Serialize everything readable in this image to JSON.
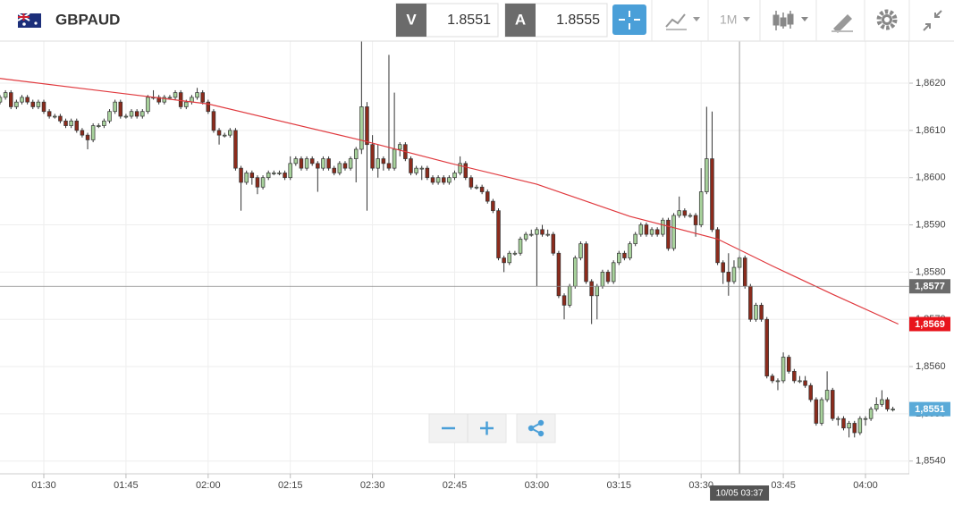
{
  "header": {
    "symbol": "GBPAUD",
    "bid_label": "V",
    "bid": 1.8551,
    "ask_label": "A",
    "ask": 1.8555,
    "timeframe": "1M"
  },
  "chart_data": {
    "type": "candlestick",
    "x": [
      "01:22",
      "01:23",
      "01:24",
      "01:25",
      "01:26",
      "01:27",
      "01:28",
      "01:29",
      "01:30",
      "01:31",
      "01:32",
      "01:33",
      "01:34",
      "01:35",
      "01:36",
      "01:37",
      "01:38",
      "01:39",
      "01:40",
      "01:41",
      "01:42",
      "01:43",
      "01:44",
      "01:45",
      "01:46",
      "01:47",
      "01:48",
      "01:49",
      "01:50",
      "01:51",
      "01:52",
      "01:53",
      "01:54",
      "01:55",
      "01:56",
      "01:57",
      "01:58",
      "01:59",
      "02:00",
      "02:01",
      "02:02",
      "02:03",
      "02:04",
      "02:05",
      "02:06",
      "02:07",
      "02:08",
      "02:09",
      "02:10",
      "02:11",
      "02:12",
      "02:13",
      "02:14",
      "02:15",
      "02:16",
      "02:17",
      "02:18",
      "02:19",
      "02:20",
      "02:21",
      "02:22",
      "02:23",
      "02:24",
      "02:25",
      "02:26",
      "02:27",
      "02:28",
      "02:29",
      "02:30",
      "02:31",
      "02:32",
      "02:33",
      "02:34",
      "02:35",
      "02:36",
      "02:37",
      "02:38",
      "02:39",
      "02:40",
      "02:41",
      "02:42",
      "02:43",
      "02:44",
      "02:45",
      "02:46",
      "02:47",
      "02:48",
      "02:49",
      "02:50",
      "02:51",
      "02:52",
      "02:53",
      "02:54",
      "02:55",
      "02:56",
      "02:57",
      "02:58",
      "02:59",
      "03:00",
      "03:01",
      "03:02",
      "03:03",
      "03:04",
      "03:05",
      "03:06",
      "03:07",
      "03:08",
      "03:09",
      "03:10",
      "03:11",
      "03:12",
      "03:13",
      "03:14",
      "03:15",
      "03:16",
      "03:17",
      "03:18",
      "03:19",
      "03:20",
      "03:21",
      "03:22",
      "03:23",
      "03:24",
      "03:25",
      "03:26",
      "03:27",
      "03:28",
      "03:29",
      "03:30",
      "03:31",
      "03:32",
      "03:33",
      "03:34",
      "03:35",
      "03:36",
      "03:37",
      "03:38",
      "03:39",
      "03:40",
      "03:41",
      "03:42",
      "03:43",
      "03:44",
      "03:45",
      "03:46",
      "03:47",
      "03:48",
      "03:49",
      "03:50",
      "03:51",
      "03:52",
      "03:53",
      "03:54",
      "03:55",
      "03:56",
      "03:57",
      "03:58",
      "03:59",
      "04:00",
      "04:01",
      "04:02",
      "04:03",
      "04:04",
      "04:05"
    ],
    "ohlc": [
      [
        1.8616,
        1.86175,
        1.86155,
        1.8617
      ],
      [
        1.8617,
        1.86185,
        1.86165,
        1.8618
      ],
      [
        1.8618,
        1.86185,
        1.86145,
        1.8615
      ],
      [
        1.8615,
        1.86165,
        1.86145,
        1.8616
      ],
      [
        1.8616,
        1.86175,
        1.86155,
        1.8617
      ],
      [
        1.8617,
        1.86175,
        1.86155,
        1.8616
      ],
      [
        1.8616,
        1.86165,
        1.86145,
        1.8615
      ],
      [
        1.8615,
        1.86165,
        1.86145,
        1.8616
      ],
      [
        1.8616,
        1.86165,
        1.86135,
        1.8614
      ],
      [
        1.8614,
        1.86145,
        1.86125,
        1.8613
      ],
      [
        1.8613,
        1.86135,
        1.86125,
        1.8613
      ],
      [
        1.8613,
        1.86135,
        1.86115,
        1.8612
      ],
      [
        1.8612,
        1.86125,
        1.86105,
        1.8611
      ],
      [
        1.8611,
        1.86125,
        1.86105,
        1.8612
      ],
      [
        1.8612,
        1.86125,
        1.86095,
        1.861
      ],
      [
        1.861,
        1.86105,
        1.86085,
        1.8609
      ],
      [
        1.8609,
        1.86095,
        1.8606,
        1.8608
      ],
      [
        1.8608,
        1.86115,
        1.86075,
        1.8611
      ],
      [
        1.8611,
        1.86115,
        1.86105,
        1.8611
      ],
      [
        1.8611,
        1.86125,
        1.86105,
        1.8612
      ],
      [
        1.8612,
        1.86145,
        1.86115,
        1.8614
      ],
      [
        1.8614,
        1.86165,
        1.86135,
        1.8616
      ],
      [
        1.8616,
        1.86165,
        1.86125,
        1.8613
      ],
      [
        1.8613,
        1.86135,
        1.86125,
        1.8613
      ],
      [
        1.8613,
        1.86145,
        1.86125,
        1.8614
      ],
      [
        1.8614,
        1.86145,
        1.86125,
        1.8613
      ],
      [
        1.8613,
        1.86145,
        1.86125,
        1.8614
      ],
      [
        1.8614,
        1.86175,
        1.86135,
        1.8617
      ],
      [
        1.8617,
        1.86185,
        1.86165,
        1.8617
      ],
      [
        1.8617,
        1.86175,
        1.86155,
        1.8616
      ],
      [
        1.8616,
        1.86175,
        1.86155,
        1.8617
      ],
      [
        1.8617,
        1.86175,
        1.86165,
        1.8617
      ],
      [
        1.8617,
        1.86185,
        1.86165,
        1.8618
      ],
      [
        1.8618,
        1.86185,
        1.86145,
        1.8615
      ],
      [
        1.8615,
        1.86165,
        1.86145,
        1.8616
      ],
      [
        1.8616,
        1.86175,
        1.86155,
        1.8617
      ],
      [
        1.8617,
        1.8619,
        1.86165,
        1.8618
      ],
      [
        1.8618,
        1.86185,
        1.86155,
        1.8616
      ],
      [
        1.8616,
        1.86165,
        1.86135,
        1.8614
      ],
      [
        1.8614,
        1.86145,
        1.86095,
        1.861
      ],
      [
        1.861,
        1.86105,
        1.8607,
        1.8609
      ],
      [
        1.8609,
        1.86095,
        1.86085,
        1.8609
      ],
      [
        1.8609,
        1.86105,
        1.86085,
        1.861
      ],
      [
        1.861,
        1.86105,
        1.86015,
        1.8602
      ],
      [
        1.8602,
        1.86025,
        1.8593,
        1.8599
      ],
      [
        1.8599,
        1.86015,
        1.85985,
        1.8601
      ],
      [
        1.8601,
        1.86015,
        1.85985,
        1.86
      ],
      [
        1.86,
        1.86005,
        1.85965,
        1.8598
      ],
      [
        1.8598,
        1.86005,
        1.85975,
        1.86
      ],
      [
        1.86,
        1.86015,
        1.85995,
        1.8601
      ],
      [
        1.8601,
        1.86015,
        1.86005,
        1.8601
      ],
      [
        1.8601,
        1.86015,
        1.86005,
        1.8601
      ],
      [
        1.8601,
        1.86015,
        1.85995,
        1.86
      ],
      [
        1.86,
        1.86045,
        1.85995,
        1.8603
      ],
      [
        1.8603,
        1.86045,
        1.86025,
        1.8604
      ],
      [
        1.8604,
        1.86045,
        1.86015,
        1.8602
      ],
      [
        1.8602,
        1.86045,
        1.86015,
        1.8604
      ],
      [
        1.8604,
        1.86045,
        1.86025,
        1.8603
      ],
      [
        1.8603,
        1.86035,
        1.8597,
        1.8602
      ],
      [
        1.8602,
        1.86045,
        1.86015,
        1.8604
      ],
      [
        1.8604,
        1.86045,
        1.86015,
        1.8602
      ],
      [
        1.8602,
        1.86025,
        1.86005,
        1.8601
      ],
      [
        1.8601,
        1.86035,
        1.86005,
        1.8603
      ],
      [
        1.8603,
        1.86035,
        1.86015,
        1.8602
      ],
      [
        1.8602,
        1.86045,
        1.86015,
        1.8604
      ],
      [
        1.8604,
        1.86065,
        1.8599,
        1.8606
      ],
      [
        1.8606,
        1.8629,
        1.8605,
        1.8615
      ],
      [
        1.8615,
        1.8616,
        1.8593,
        1.8607
      ],
      [
        1.8607,
        1.8609,
        1.86015,
        1.8602
      ],
      [
        1.8602,
        1.8607,
        1.86,
        1.8604
      ],
      [
        1.8604,
        1.86045,
        1.86015,
        1.8603
      ],
      [
        1.8603,
        1.8626,
        1.86015,
        1.8602
      ],
      [
        1.8602,
        1.8618,
        1.86015,
        1.8606
      ],
      [
        1.8606,
        1.86075,
        1.86045,
        1.8607
      ],
      [
        1.8607,
        1.86075,
        1.86035,
        1.8604
      ],
      [
        1.8604,
        1.86045,
        1.86005,
        1.8601
      ],
      [
        1.8601,
        1.86025,
        1.86005,
        1.8602
      ],
      [
        1.8602,
        1.86025,
        1.85995,
        1.8602
      ],
      [
        1.8602,
        1.86025,
        1.85995,
        1.86
      ],
      [
        1.86,
        1.86005,
        1.85985,
        1.8599
      ],
      [
        1.8599,
        1.86005,
        1.85985,
        1.86
      ],
      [
        1.86,
        1.86005,
        1.85985,
        1.8599
      ],
      [
        1.8599,
        1.86005,
        1.85985,
        1.86
      ],
      [
        1.86,
        1.86015,
        1.85995,
        1.8601
      ],
      [
        1.8601,
        1.86045,
        1.86005,
        1.8603
      ],
      [
        1.8603,
        1.86035,
        1.85995,
        1.86
      ],
      [
        1.86,
        1.86005,
        1.85975,
        1.8598
      ],
      [
        1.8598,
        1.85985,
        1.85975,
        1.8598
      ],
      [
        1.8598,
        1.85985,
        1.85965,
        1.8597
      ],
      [
        1.8597,
        1.85975,
        1.85945,
        1.8595
      ],
      [
        1.8595,
        1.85955,
        1.85925,
        1.8593
      ],
      [
        1.8593,
        1.85935,
        1.85825,
        1.8583
      ],
      [
        1.8583,
        1.85835,
        1.858,
        1.8582
      ],
      [
        1.8582,
        1.85845,
        1.85815,
        1.8584
      ],
      [
        1.8584,
        1.85845,
        1.85835,
        1.8584
      ],
      [
        1.8584,
        1.85875,
        1.85835,
        1.8587
      ],
      [
        1.8587,
        1.85885,
        1.85865,
        1.8588
      ],
      [
        1.8588,
        1.8589,
        1.85875,
        1.8588
      ],
      [
        1.8588,
        1.85895,
        1.8577,
        1.8589
      ],
      [
        1.8589,
        1.859,
        1.85875,
        1.8588
      ],
      [
        1.8588,
        1.8589,
        1.85875,
        1.8588
      ],
      [
        1.8588,
        1.85885,
        1.85835,
        1.8584
      ],
      [
        1.8584,
        1.85845,
        1.85745,
        1.8575
      ],
      [
        1.8575,
        1.85755,
        1.857,
        1.8573
      ],
      [
        1.8573,
        1.85775,
        1.85725,
        1.8577
      ],
      [
        1.8577,
        1.85835,
        1.85765,
        1.8583
      ],
      [
        1.8583,
        1.85865,
        1.85825,
        1.8586
      ],
      [
        1.8586,
        1.85865,
        1.85775,
        1.8578
      ],
      [
        1.8578,
        1.85785,
        1.8569,
        1.8575
      ],
      [
        1.8575,
        1.85775,
        1.857,
        1.8577
      ],
      [
        1.8577,
        1.85805,
        1.85765,
        1.858
      ],
      [
        1.858,
        1.85805,
        1.85775,
        1.8578
      ],
      [
        1.8578,
        1.85825,
        1.85775,
        1.8582
      ],
      [
        1.8582,
        1.85845,
        1.85815,
        1.8584
      ],
      [
        1.8584,
        1.85845,
        1.85825,
        1.8583
      ],
      [
        1.8583,
        1.85865,
        1.85825,
        1.8586
      ],
      [
        1.8586,
        1.85885,
        1.85855,
        1.8588
      ],
      [
        1.8588,
        1.85905,
        1.85875,
        1.859
      ],
      [
        1.859,
        1.85905,
        1.85875,
        1.8588
      ],
      [
        1.8588,
        1.85895,
        1.85875,
        1.8589
      ],
      [
        1.8589,
        1.85895,
        1.85875,
        1.8588
      ],
      [
        1.8588,
        1.85915,
        1.85875,
        1.8591
      ],
      [
        1.8591,
        1.85915,
        1.85845,
        1.8585
      ],
      [
        1.8585,
        1.85925,
        1.85845,
        1.8592
      ],
      [
        1.8592,
        1.8596,
        1.85915,
        1.8593
      ],
      [
        1.8593,
        1.85935,
        1.85915,
        1.8592
      ],
      [
        1.8592,
        1.85925,
        1.85915,
        1.8592
      ],
      [
        1.8592,
        1.85925,
        1.85875,
        1.859
      ],
      [
        1.859,
        1.8602,
        1.85895,
        1.8597
      ],
      [
        1.8597,
        1.8615,
        1.85965,
        1.8604
      ],
      [
        1.8604,
        1.8614,
        1.85885,
        1.8589
      ],
      [
        1.8589,
        1.85895,
        1.85815,
        1.8582
      ],
      [
        1.8582,
        1.85825,
        1.85775,
        1.858
      ],
      [
        1.858,
        1.8584,
        1.8575,
        1.8578
      ],
      [
        1.8578,
        1.85825,
        1.85775,
        1.8581
      ],
      [
        1.8581,
        1.85835,
        1.85805,
        1.8583
      ],
      [
        1.8583,
        1.85835,
        1.85765,
        1.8577
      ],
      [
        1.8577,
        1.85775,
        1.85695,
        1.857
      ],
      [
        1.857,
        1.85735,
        1.85695,
        1.8573
      ],
      [
        1.8573,
        1.85735,
        1.85695,
        1.857
      ],
      [
        1.857,
        1.85705,
        1.85575,
        1.8558
      ],
      [
        1.8558,
        1.85585,
        1.85565,
        1.8557
      ],
      [
        1.8557,
        1.85575,
        1.8555,
        1.8557
      ],
      [
        1.8557,
        1.8563,
        1.85565,
        1.8562
      ],
      [
        1.8562,
        1.85625,
        1.85585,
        1.8559
      ],
      [
        1.8559,
        1.85595,
        1.85565,
        1.8557
      ],
      [
        1.8557,
        1.8558,
        1.85565,
        1.8557
      ],
      [
        1.8557,
        1.8558,
        1.85555,
        1.8556
      ],
      [
        1.8556,
        1.85565,
        1.85525,
        1.8553
      ],
      [
        1.8553,
        1.85535,
        1.85475,
        1.8548
      ],
      [
        1.8548,
        1.85535,
        1.85475,
        1.8553
      ],
      [
        1.8553,
        1.8559,
        1.85525,
        1.8555
      ],
      [
        1.8555,
        1.85555,
        1.85485,
        1.8549
      ],
      [
        1.8549,
        1.85495,
        1.85475,
        1.8549
      ],
      [
        1.8549,
        1.85495,
        1.85465,
        1.8547
      ],
      [
        1.8547,
        1.85485,
        1.8545,
        1.8548
      ],
      [
        1.8548,
        1.85485,
        1.8545,
        1.8546
      ],
      [
        1.8546,
        1.85495,
        1.85455,
        1.8549
      ],
      [
        1.8549,
        1.85495,
        1.85475,
        1.8549
      ],
      [
        1.8549,
        1.85515,
        1.85485,
        1.8551
      ],
      [
        1.8551,
        1.85535,
        1.85505,
        1.8552
      ],
      [
        1.8552,
        1.8555,
        1.85515,
        1.8553
      ],
      [
        1.8553,
        1.85535,
        1.85505,
        1.8551
      ],
      [
        1.8551,
        1.85515,
        1.85505,
        1.8551
      ]
    ],
    "up_color": "#a8d29c",
    "down_color": "#8c2b1c",
    "moving_average": {
      "color": "#e0393e",
      "x": [
        "01:22",
        "02:00",
        "02:28",
        "02:44",
        "03:00",
        "03:17",
        "03:33",
        "03:43",
        "03:54",
        "04:06"
      ],
      "values": [
        1.8621,
        1.86156,
        1.86079,
        1.86031,
        1.85986,
        1.85918,
        1.8587,
        1.85813,
        1.85753,
        1.8569
      ]
    },
    "xlim": [
      "01:22",
      "04:08"
    ],
    "xticks": [
      "01:30",
      "01:45",
      "02:00",
      "02:15",
      "02:30",
      "02:45",
      "03:00",
      "03:15",
      "03:30",
      "03:45",
      "04:00"
    ],
    "ylim": [
      1.85373,
      1.86289
    ],
    "yticks": [
      {
        "value": 1.854,
        "label": "1,8540"
      },
      {
        "value": 1.855,
        "label": "1,8550"
      },
      {
        "value": 1.856,
        "label": "1,8560"
      },
      {
        "value": 1.857,
        "label": "1,8570"
      },
      {
        "value": 1.858,
        "label": "1,8580"
      },
      {
        "value": 1.859,
        "label": "1,8590"
      },
      {
        "value": 1.86,
        "label": "1,8600"
      },
      {
        "value": 1.861,
        "label": "1,8610"
      },
      {
        "value": 1.862,
        "label": "1,8620"
      }
    ],
    "grid": true,
    "price_labels": [
      {
        "value": 1.8577,
        "label": "1,8577",
        "color": "#6b6b6b"
      },
      {
        "value": 1.8569,
        "label": "1,8569",
        "color": "#e8141c"
      },
      {
        "value": 1.8551,
        "label": "1,8551",
        "color": "#5aaad8"
      }
    ],
    "crosshair": {
      "x": "03:37",
      "label": "10/05 03:37"
    }
  }
}
